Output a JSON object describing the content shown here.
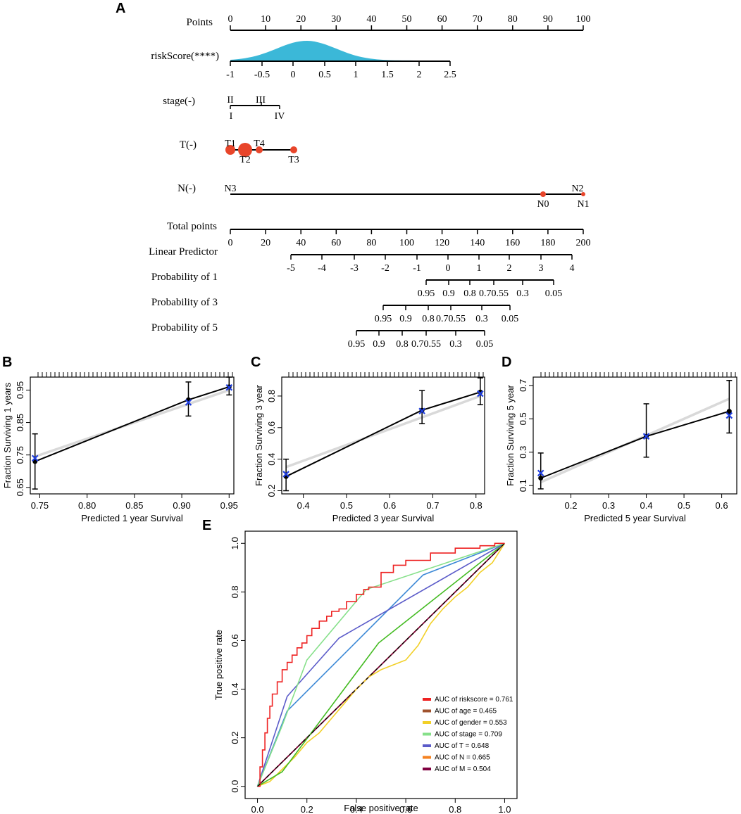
{
  "panels": {
    "a": "A",
    "b": "B",
    "c": "C",
    "d": "D",
    "e": "E"
  },
  "chart_data": [
    {
      "type": "nomogram",
      "panel": "A",
      "rows": [
        {
          "label": "Points",
          "kind": "axis",
          "min": 0,
          "max": 100,
          "ticks": [
            "0",
            "10",
            "20",
            "30",
            "40",
            "50",
            "60",
            "70",
            "80",
            "90",
            "100"
          ]
        },
        {
          "label": "riskScore(****)",
          "kind": "density",
          "ticks": [
            "-1",
            "-0.5",
            "0",
            "0.5",
            "1",
            "1.5",
            "2",
            "2.5"
          ]
        },
        {
          "label": "stage(-)",
          "kind": "categorical",
          "levels_above": [
            "II",
            "III"
          ],
          "levels_below": [
            "I",
            "IV"
          ]
        },
        {
          "label": "T(-)",
          "kind": "categorical",
          "levels_above": [
            "T1",
            "T4"
          ],
          "levels_below": [
            "T2",
            "T3"
          ]
        },
        {
          "label": "N(-)",
          "kind": "categorical",
          "levels_above": [
            "N3",
            "N2"
          ],
          "levels_below": [
            "N0",
            "N1"
          ]
        },
        {
          "label": "Total points",
          "kind": "axis",
          "min": 0,
          "max": 200,
          "ticks": [
            "0",
            "20",
            "40",
            "60",
            "80",
            "100",
            "120",
            "140",
            "160",
            "180",
            "200"
          ]
        },
        {
          "label": "Linear Predictor",
          "kind": "axis",
          "ticks": [
            "-5",
            "-4",
            "-3",
            "-2",
            "-1",
            "0",
            "1",
            "2",
            "3",
            "4"
          ]
        },
        {
          "label": "Probability of 1",
          "kind": "axis",
          "ticks": [
            "0.95",
            "0.9",
            "0.8",
            "0.70.55",
            "0.3",
            "0.05"
          ]
        },
        {
          "label": "Probability of 3",
          "kind": "axis",
          "ticks": [
            "0.95",
            "0.9",
            "0.8",
            "0.70.55",
            "0.3",
            "0.05"
          ]
        },
        {
          "label": "Probability of 5",
          "kind": "axis",
          "ticks": [
            "0.95",
            "0.9",
            "0.8",
            "0.70.55",
            "0.3",
            "0.05"
          ]
        }
      ]
    },
    {
      "type": "calibration",
      "panel": "B",
      "xlabel": "Predicted  1 year Survival",
      "ylabel": "Fraction Surviving 1 years",
      "xlim": [
        0.74,
        0.955
      ],
      "ylim": [
        0.63,
        0.99
      ],
      "xticks": [
        "0.75",
        "0.80",
        "0.85",
        "0.90",
        "0.95"
      ],
      "yticks": [
        "0.65",
        "0.75",
        "0.85",
        "0.95"
      ],
      "ideal_line": [
        [
          0.745,
          0.745
        ],
        [
          0.95,
          0.95
        ]
      ],
      "points": [
        {
          "x": 0.745,
          "y": 0.73,
          "lo": 0.645,
          "hi": 0.815,
          "xcross": 0.745,
          "ycross": 0.74
        },
        {
          "x": 0.907,
          "y": 0.92,
          "lo": 0.87,
          "hi": 0.975,
          "xcross": 0.907,
          "ycross": 0.912
        },
        {
          "x": 0.95,
          "y": 0.96,
          "lo": 0.935,
          "hi": 0.99,
          "xcross": 0.95,
          "ycross": 0.958
        }
      ]
    },
    {
      "type": "calibration",
      "panel": "C",
      "xlabel": "Predicted  3 year Survival",
      "ylabel": "Fraction Surviving 3 year",
      "xlim": [
        0.35,
        0.82
      ],
      "ylim": [
        0.18,
        0.92
      ],
      "xticks": [
        "0.4",
        "0.5",
        "0.6",
        "0.7",
        "0.8"
      ],
      "yticks": [
        "0.2",
        "0.4",
        "0.6",
        "0.8"
      ],
      "ideal_line": [
        [
          0.36,
          0.35
        ],
        [
          0.81,
          0.8
        ]
      ],
      "points": [
        {
          "x": 0.36,
          "y": 0.29,
          "lo": 0.2,
          "hi": 0.4,
          "xcross": 0.36,
          "ycross": 0.305
        },
        {
          "x": 0.675,
          "y": 0.71,
          "lo": 0.625,
          "hi": 0.835,
          "xcross": 0.675,
          "ycross": 0.705
        },
        {
          "x": 0.81,
          "y": 0.825,
          "lo": 0.745,
          "hi": 0.915,
          "xcross": 0.81,
          "ycross": 0.815
        }
      ]
    },
    {
      "type": "calibration",
      "panel": "D",
      "xlabel": "Predicted  5 year Survival",
      "ylabel": "Fraction Surviving 5 year",
      "xlim": [
        0.1,
        0.64
      ],
      "ylim": [
        0.05,
        0.75
      ],
      "xticks": [
        "0.2",
        "0.3",
        "0.4",
        "0.5",
        "0.6"
      ],
      "yticks": [
        "0.1",
        "0.3",
        "0.5",
        "0.7"
      ],
      "ideal_line": [
        [
          0.12,
          0.12
        ],
        [
          0.62,
          0.62
        ]
      ],
      "points": [
        {
          "x": 0.12,
          "y": 0.145,
          "lo": 0.08,
          "hi": 0.295,
          "xcross": 0.12,
          "ycross": 0.175
        },
        {
          "x": 0.4,
          "y": 0.395,
          "lo": 0.27,
          "hi": 0.59,
          "xcross": 0.4,
          "ycross": 0.395
        },
        {
          "x": 0.62,
          "y": 0.545,
          "lo": 0.415,
          "hi": 0.73,
          "xcross": 0.62,
          "ycross": 0.52
        }
      ]
    },
    {
      "type": "line",
      "panel": "E",
      "xlabel": "False positive rate",
      "ylabel": "True positive rate",
      "xlim": [
        -0.05,
        1.05
      ],
      "ylim": [
        -0.05,
        1.05
      ],
      "xticks": [
        "0.0",
        "0.2",
        "0.4",
        "0.6",
        "0.8",
        "1.0"
      ],
      "yticks": [
        "0.0",
        "0.2",
        "0.4",
        "0.6",
        "0.8",
        "1.0"
      ],
      "series": [
        {
          "name": "riskscore",
          "legend": "AUC of riskscore = 0.761",
          "color": "#ee2222",
          "x": [
            0,
            0.01,
            0.02,
            0.03,
            0.04,
            0.05,
            0.06,
            0.08,
            0.1,
            0.12,
            0.14,
            0.16,
            0.18,
            0.2,
            0.22,
            0.25,
            0.28,
            0.3,
            0.33,
            0.36,
            0.4,
            0.43,
            0.45,
            0.5,
            0.55,
            0.6,
            0.65,
            0.7,
            0.8,
            0.9,
            0.96,
            1.0
          ],
          "y": [
            0,
            0.08,
            0.15,
            0.22,
            0.28,
            0.33,
            0.38,
            0.43,
            0.48,
            0.51,
            0.54,
            0.57,
            0.59,
            0.62,
            0.65,
            0.68,
            0.7,
            0.72,
            0.73,
            0.76,
            0.79,
            0.81,
            0.82,
            0.88,
            0.91,
            0.93,
            0.93,
            0.96,
            0.98,
            0.99,
            1.0,
            1.0
          ]
        },
        {
          "name": "age",
          "legend": "AUC of age = 0.465",
          "color": "#a0522d",
          "x": [
            0,
            1
          ],
          "y": [
            0,
            1
          ]
        },
        {
          "name": "gender",
          "legend": "AUC of gender = 0.553",
          "color": "#f2d028",
          "x": [
            0,
            0.05,
            0.1,
            0.15,
            0.2,
            0.25,
            0.3,
            0.35,
            0.4,
            0.45,
            0.5,
            0.55,
            0.6,
            0.65,
            0.7,
            0.75,
            0.8,
            0.85,
            0.9,
            0.95,
            1.0
          ],
          "y": [
            0,
            0.02,
            0.07,
            0.12,
            0.18,
            0.22,
            0.28,
            0.34,
            0.4,
            0.45,
            0.48,
            0.5,
            0.52,
            0.58,
            0.67,
            0.73,
            0.78,
            0.82,
            0.88,
            0.92,
            1.0
          ]
        },
        {
          "name": "stage",
          "legend": "AUC of stage = 0.709",
          "color": "#86e08a",
          "x": [
            0,
            0.1,
            0.2,
            0.44,
            1.0
          ],
          "y": [
            0,
            0.25,
            0.52,
            0.81,
            1.0
          ]
        },
        {
          "name": "T",
          "legend": "AUC of T = 0.648",
          "color": "#5b5bc9",
          "x": [
            0,
            0.12,
            0.33,
            1.0
          ],
          "y": [
            0,
            0.37,
            0.61,
            1.0
          ]
        },
        {
          "name": "N",
          "legend": "AUC of N = 0.665",
          "color": "#f58220",
          "x": [
            0,
            1
          ],
          "y": [
            0,
            1
          ]
        },
        {
          "name": "M",
          "legend": "AUC of M = 0.504",
          "color": "#800040",
          "x": [
            0,
            1
          ],
          "y": [
            0,
            1
          ]
        },
        {
          "name": "extra-green",
          "legend": "",
          "color": "#44bb22",
          "x": [
            0,
            0.1,
            0.49,
            1.0
          ],
          "y": [
            0,
            0.06,
            0.59,
            1.0
          ]
        },
        {
          "name": "extra-blue",
          "legend": "",
          "color": "#3b88d6",
          "x": [
            0,
            0.12,
            0.67,
            1.0
          ],
          "y": [
            0,
            0.31,
            0.87,
            1.0
          ]
        }
      ]
    }
  ]
}
